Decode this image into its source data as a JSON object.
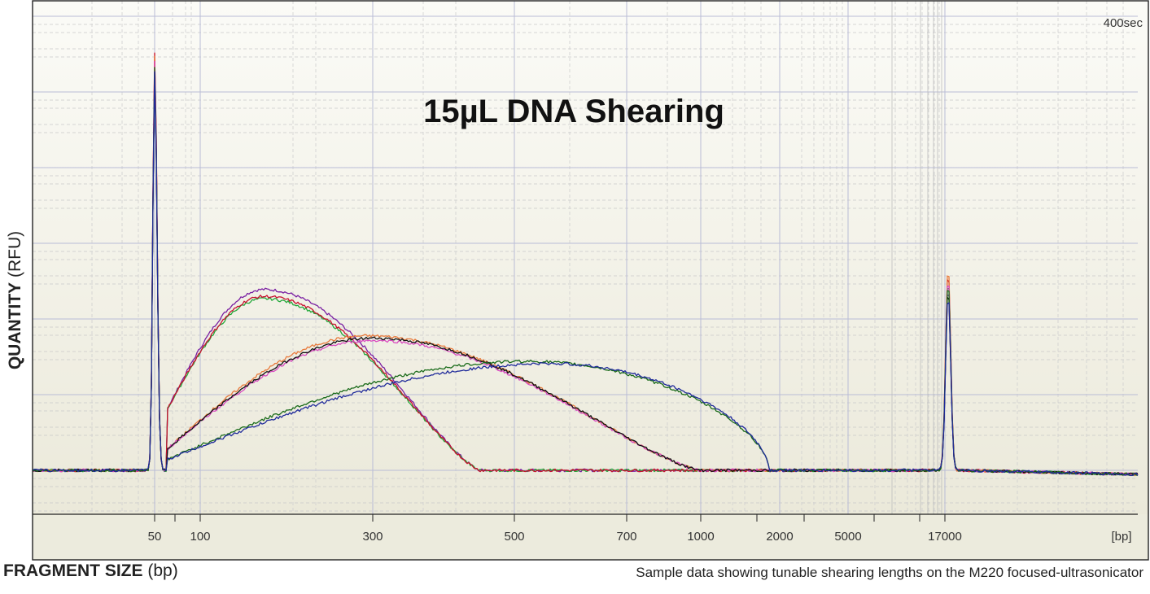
{
  "chart_data": {
    "type": "line",
    "title": "15µL DNA Shearing",
    "corner_label": "400sec",
    "y_axis": {
      "label_bold": "QUANTITY",
      "label_unit": "(RFU)"
    },
    "x_axis": {
      "label_bold": "FRAGMENT SIZE",
      "label_unit": "(bp)",
      "unit_tick": "[bp]",
      "ticks": [
        "50",
        "100",
        "300",
        "500",
        "700",
        "1000",
        "2000",
        "5000",
        "17000"
      ]
    },
    "caption": "Sample data showing tunable shearing lengths on the M220 focused-ultrasonicator",
    "grid": true,
    "legend": "none",
    "colors": {
      "plot_bg_top": "#fbfbf7",
      "plot_bg_bottom": "#eae8d8",
      "grid_major": "#b9bcd6",
      "grid_minor": "#c8c8c8",
      "axis_area": "#ecebdd"
    },
    "series": [
      {
        "color": "#7a1fa2",
        "marker_peak": 88,
        "fragment_peak_bp": 150,
        "fragment_peak_height": 39,
        "final_peak": 40
      },
      {
        "color": "#22a83a",
        "marker_peak": 87,
        "fragment_peak_bp": 150,
        "fragment_peak_height": 37,
        "final_peak": 41
      },
      {
        "color": "#c8102e",
        "marker_peak": 90,
        "fragment_peak_bp": 150,
        "fragment_peak_height": 37.5,
        "final_peak": 43
      },
      {
        "color": "#e87a3c",
        "marker_peak": 89,
        "fragment_peak_bp": 290,
        "fragment_peak_height": 29,
        "final_peak": 44
      },
      {
        "color": "#d94ac0",
        "marker_peak": 88,
        "fragment_peak_bp": 300,
        "fragment_peak_height": 28,
        "final_peak": 42
      },
      {
        "color": "#111111",
        "marker_peak": 86,
        "fragment_peak_bp": 300,
        "fragment_peak_height": 28.5,
        "final_peak": 39
      },
      {
        "color": "#1a6b1a",
        "marker_peak": 87,
        "fragment_peak_bp": 520,
        "fragment_peak_height": 23.5,
        "final_peak": 41
      },
      {
        "color": "#1f2a9a",
        "marker_peak": 86,
        "fragment_peak_bp": 560,
        "fragment_peak_height": 23,
        "final_peak": 38
      }
    ]
  }
}
